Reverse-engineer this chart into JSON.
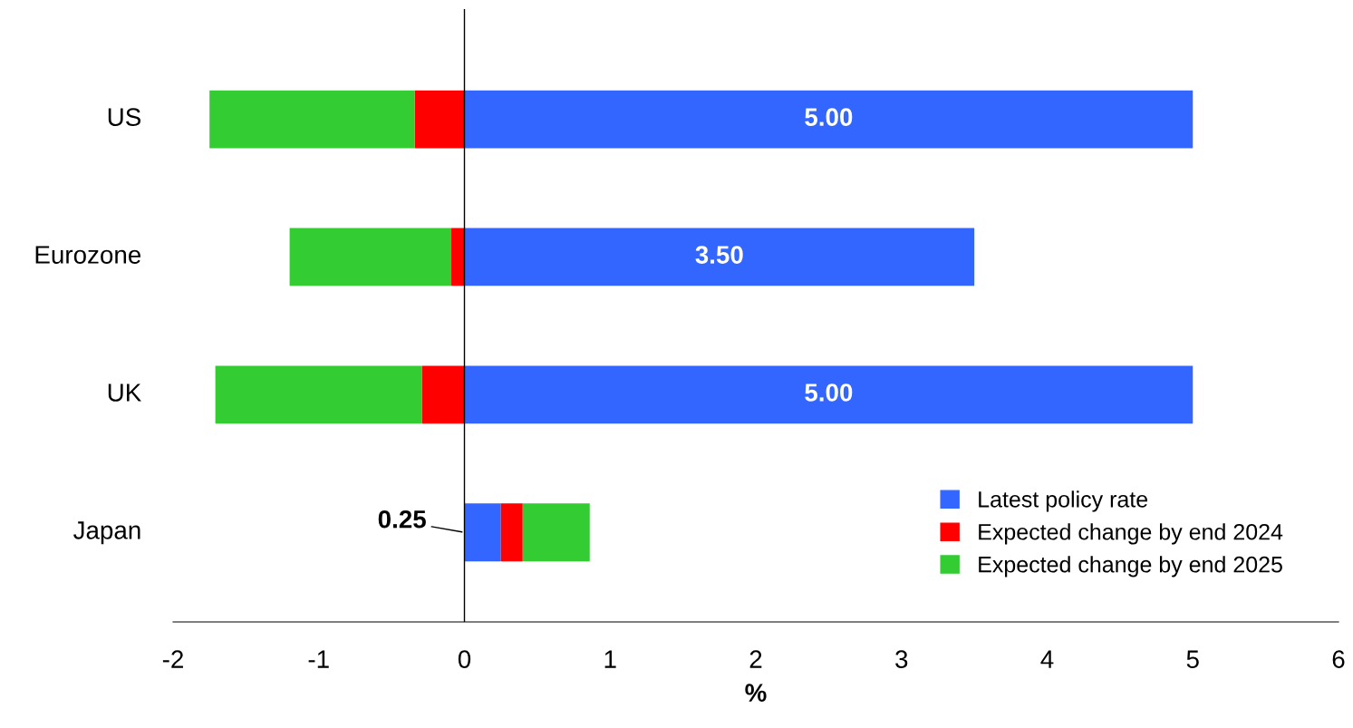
{
  "chart_data": {
    "type": "bar",
    "orientation": "horizontal",
    "stacked": true,
    "xlabel": "%",
    "categories": [
      "US",
      "Eurozone",
      "UK",
      "Japan"
    ],
    "series": [
      {
        "name": "Latest policy rate",
        "color": "#3366ff",
        "values": [
          5.0,
          3.5,
          5.0,
          0.25
        ],
        "value_labels": [
          "5.00",
          "3.50",
          "5.00",
          "0.25"
        ]
      },
      {
        "name": "Expected change by end 2024",
        "color": "#ff0000",
        "values": [
          -0.34,
          -0.09,
          -0.29,
          0.15
        ]
      },
      {
        "name": "Expected change by end 2025",
        "color": "#33cc33",
        "values": [
          -1.41,
          -1.11,
          -1.42,
          0.46
        ]
      }
    ],
    "ref_lines": [
      {
        "axis": "x",
        "value": 0,
        "color": "#000000"
      }
    ],
    "xlim": [
      -2,
      6
    ],
    "xticks": [
      -2,
      -1,
      0,
      1,
      2,
      3,
      4,
      5,
      6
    ],
    "grid": false,
    "legend": "bottom right"
  }
}
